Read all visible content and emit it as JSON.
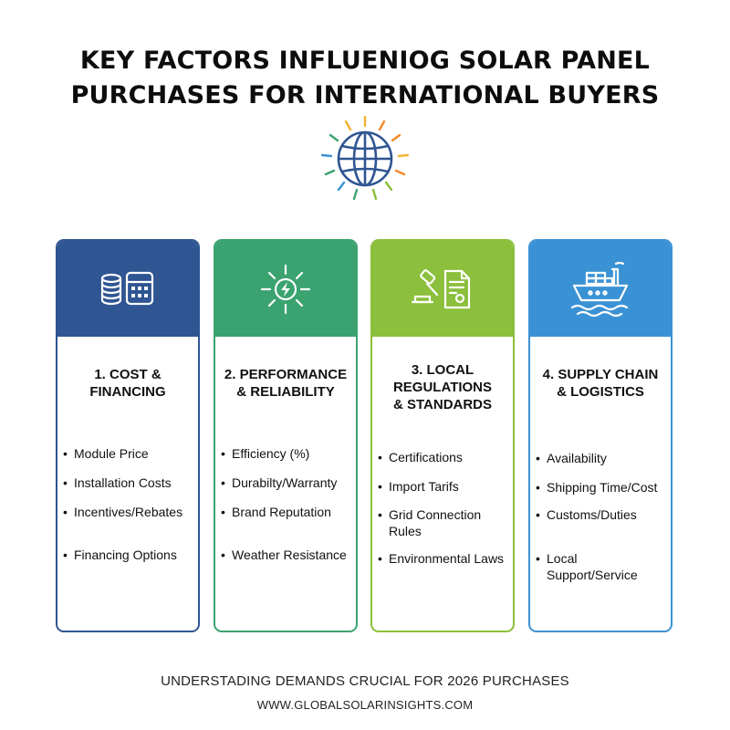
{
  "header": {
    "title_line1": "KEY FACTORS INFLUENIOG SOLAR PANEL",
    "title_line2": "PURCHASES FOR INTERNATIONAL BUYERS",
    "icon": "sun-globe-icon"
  },
  "cards": [
    {
      "title_lines": [
        "1. COST &",
        "FINANCING"
      ],
      "icon": "coins-calculator-icon",
      "color": "#2f5592",
      "bullets": [
        "Module Price",
        "Installation Costs",
        "Incentives/Rebates",
        "Financing Options"
      ]
    },
    {
      "title_lines": [
        "2. PERFORMANCE",
        "& RELIABILITY"
      ],
      "icon": "sun-bolt-icon",
      "color": "#3aa36f",
      "bullets": [
        "Efficiency (%)",
        "Durabilty/Warranty",
        "Brand Reputation",
        "Weather Resistance"
      ]
    },
    {
      "title_lines": [
        "3. LOCAL",
        "REGULATIONS",
        "& STANDARDS"
      ],
      "icon": "gavel-document-icon",
      "color": "#8bbf3c",
      "bullets": [
        "Certifications",
        "Import Tarifs",
        "Grid Connection Rules",
        "Environmental Laws"
      ]
    },
    {
      "title_lines": [
        "4. SUPPLY CHAIN",
        "& LOGISTICS"
      ],
      "icon": "cargo-ship-icon",
      "color": "#3a92d4",
      "bullets": [
        "Availability",
        "Shipping Time/Cost",
        "Customs/Duties",
        "Local Support/Service"
      ]
    }
  ],
  "footer": {
    "tagline": "UNDERSTADING DEMANDS CRUCIAL FOR 2026 PURCHASES",
    "url": "WWW.GLOBALSOLARINSIGHTS.COM"
  }
}
